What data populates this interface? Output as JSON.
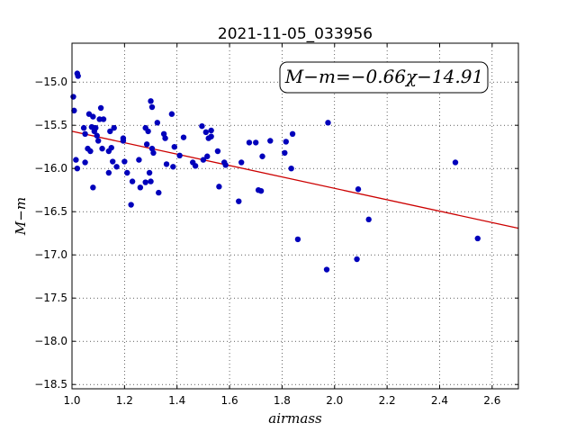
{
  "chart_data": {
    "type": "scatter",
    "title": "2021-11-05_033956",
    "xlabel": "airmass",
    "ylabel": "M−m",
    "xlim": [
      1.0,
      2.7
    ],
    "ylim": [
      -18.55,
      -14.55
    ],
    "x_ticks": [
      1.0,
      1.2,
      1.4,
      1.6,
      1.8,
      2.0,
      2.2,
      2.4,
      2.6
    ],
    "x_tick_labels": [
      "1.0",
      "1.2",
      "1.4",
      "1.6",
      "1.8",
      "2.0",
      "2.2",
      "2.4",
      "2.6"
    ],
    "y_ticks": [
      -15.0,
      -15.5,
      -16.0,
      -16.5,
      -17.0,
      -17.5,
      -18.0,
      -18.5
    ],
    "y_tick_labels": [
      "−15.0",
      "−15.5",
      "−16.0",
      "−16.5",
      "−17.0",
      "−17.5",
      "−18.0",
      "−18.5"
    ],
    "grid": true,
    "annotation": "M−m=−0.66χ−14.91",
    "fit_line": {
      "slope": -0.66,
      "intercept": -14.91,
      "x_range": [
        1.0,
        2.7
      ],
      "color": "#cc0000"
    },
    "point_color": "#0000bb",
    "points": [
      [
        1.005,
        -15.17
      ],
      [
        1.008,
        -15.33
      ],
      [
        1.02,
        -14.9
      ],
      [
        1.023,
        -14.93
      ],
      [
        1.015,
        -15.9
      ],
      [
        1.02,
        -16.0
      ],
      [
        1.045,
        -15.53
      ],
      [
        1.05,
        -15.6
      ],
      [
        1.05,
        -15.93
      ],
      [
        1.06,
        -15.77
      ],
      [
        1.065,
        -15.37
      ],
      [
        1.07,
        -15.8
      ],
      [
        1.075,
        -15.52
      ],
      [
        1.08,
        -15.4
      ],
      [
        1.08,
        -16.22
      ],
      [
        1.085,
        -15.57
      ],
      [
        1.09,
        -15.53
      ],
      [
        1.095,
        -15.62
      ],
      [
        1.1,
        -15.68
      ],
      [
        1.105,
        -15.43
      ],
      [
        1.11,
        -15.3
      ],
      [
        1.115,
        -15.77
      ],
      [
        1.12,
        -15.43
      ],
      [
        1.14,
        -15.8
      ],
      [
        1.14,
        -16.05
      ],
      [
        1.145,
        -15.57
      ],
      [
        1.15,
        -15.76
      ],
      [
        1.155,
        -15.92
      ],
      [
        1.16,
        -15.53
      ],
      [
        1.17,
        -15.98
      ],
      [
        1.195,
        -15.65
      ],
      [
        1.195,
        -15.68
      ],
      [
        1.2,
        -15.92
      ],
      [
        1.21,
        -16.05
      ],
      [
        1.225,
        -16.42
      ],
      [
        1.23,
        -16.15
      ],
      [
        1.255,
        -15.9
      ],
      [
        1.26,
        -16.22
      ],
      [
        1.28,
        -15.53
      ],
      [
        1.285,
        -15.72
      ],
      [
        1.28,
        -16.16
      ],
      [
        1.29,
        -15.57
      ],
      [
        1.295,
        -16.05
      ],
      [
        1.3,
        -15.22
      ],
      [
        1.305,
        -15.29
      ],
      [
        1.3,
        -16.15
      ],
      [
        1.305,
        -15.77
      ],
      [
        1.31,
        -15.82
      ],
      [
        1.325,
        -15.47
      ],
      [
        1.33,
        -16.28
      ],
      [
        1.35,
        -15.6
      ],
      [
        1.355,
        -15.65
      ],
      [
        1.36,
        -15.95
      ],
      [
        1.38,
        -15.37
      ],
      [
        1.385,
        -15.98
      ],
      [
        1.39,
        -15.75
      ],
      [
        1.41,
        -15.85
      ],
      [
        1.425,
        -15.64
      ],
      [
        1.46,
        -15.93
      ],
      [
        1.47,
        -15.97
      ],
      [
        1.495,
        -15.51
      ],
      [
        1.5,
        -15.9
      ],
      [
        1.51,
        -15.58
      ],
      [
        1.515,
        -15.86
      ],
      [
        1.52,
        -15.65
      ],
      [
        1.53,
        -15.63
      ],
      [
        1.53,
        -15.56
      ],
      [
        1.555,
        -15.8
      ],
      [
        1.56,
        -16.21
      ],
      [
        1.58,
        -15.93
      ],
      [
        1.585,
        -15.96
      ],
      [
        1.635,
        -16.38
      ],
      [
        1.645,
        -15.93
      ],
      [
        1.675,
        -15.7
      ],
      [
        1.7,
        -15.7
      ],
      [
        1.71,
        -16.25
      ],
      [
        1.72,
        -16.26
      ],
      [
        1.725,
        -15.86
      ],
      [
        1.755,
        -15.68
      ],
      [
        1.81,
        -15.82
      ],
      [
        1.815,
        -15.69
      ],
      [
        1.835,
        -16.0
      ],
      [
        1.84,
        -15.6
      ],
      [
        1.86,
        -16.82
      ],
      [
        1.97,
        -17.17
      ],
      [
        1.975,
        -15.47
      ],
      [
        2.085,
        -17.05
      ],
      [
        2.09,
        -16.24
      ],
      [
        2.13,
        -16.59
      ],
      [
        2.46,
        -15.93
      ],
      [
        2.545,
        -16.81
      ]
    ]
  }
}
